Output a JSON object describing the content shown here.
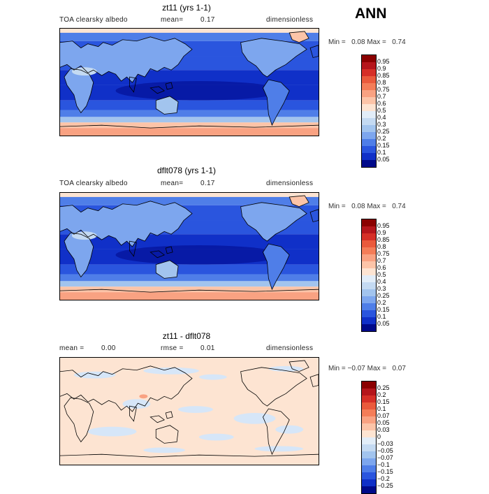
{
  "season": "ANN",
  "panels": [
    {
      "title": "zt11 (yrs 1-1)",
      "variable": "TOA clearsky albedo",
      "mean_label": "mean=",
      "mean_value": "0.17",
      "units": "dimensionless",
      "min_label": "Min =",
      "min_value": "0.08",
      "max_label": "Max =",
      "max_value": "0.74",
      "colorbar": {
        "ticks": [
          "0.95",
          "0.9",
          "0.85",
          "0.8",
          "0.75",
          "0.7",
          "0.6",
          "0.5",
          "0.4",
          "0.3",
          "0.25",
          "0.2",
          "0.15",
          "0.1",
          "0.05"
        ],
        "colors": [
          "#8b0000",
          "#b5151b",
          "#d62f27",
          "#ea5a3c",
          "#f47d58",
          "#f9a282",
          "#fcc4a8",
          "#fde4d2",
          "#e2edf8",
          "#c4daf2",
          "#a2c4ee",
          "#7da6ee",
          "#4f7ee8",
          "#2a55de",
          "#1030c8",
          "#000a8a"
        ]
      }
    },
    {
      "title": "dflt078 (yrs 1-1)",
      "variable": "TOA clearsky albedo",
      "mean_label": "mean=",
      "mean_value": "0.17",
      "units": "dimensionless",
      "min_label": "Min =",
      "min_value": "0.08",
      "max_label": "Max =",
      "max_value": "0.74",
      "colorbar": {
        "ticks": [
          "0.95",
          "0.9",
          "0.85",
          "0.8",
          "0.75",
          "0.7",
          "0.6",
          "0.5",
          "0.4",
          "0.3",
          "0.25",
          "0.2",
          "0.15",
          "0.1",
          "0.05"
        ],
        "colors": [
          "#8b0000",
          "#b5151b",
          "#d62f27",
          "#ea5a3c",
          "#f47d58",
          "#f9a282",
          "#fcc4a8",
          "#fde4d2",
          "#e2edf8",
          "#c4daf2",
          "#a2c4ee",
          "#7da6ee",
          "#4f7ee8",
          "#2a55de",
          "#1030c8",
          "#000a8a"
        ]
      }
    },
    {
      "title": "zt11 - dflt078",
      "mean_label": "mean =",
      "mean_value": "0.00",
      "rmse_label": "rmse =",
      "rmse_value": "0.01",
      "units": "dimensionless",
      "min_label": "Min =",
      "min_value": "−0.07",
      "max_label": "Max =",
      "max_value": "0.07",
      "colorbar": {
        "ticks": [
          "0.25",
          "0.2",
          "0.15",
          "0.1",
          "0.07",
          "0.05",
          "0.03",
          "0",
          "−0.03",
          "−0.05",
          "−0.07",
          "−0.1",
          "−0.15",
          "−0.2",
          "−0.25"
        ],
        "colors": [
          "#8b0000",
          "#b5151b",
          "#d62f27",
          "#ea5a3c",
          "#f47d58",
          "#f9a282",
          "#fcc4a8",
          "#fde4d2",
          "#e2edf8",
          "#c4daf2",
          "#a2c4ee",
          "#7da6ee",
          "#4f7ee8",
          "#2a55de",
          "#1030c8",
          "#000a8a"
        ]
      }
    }
  ]
}
